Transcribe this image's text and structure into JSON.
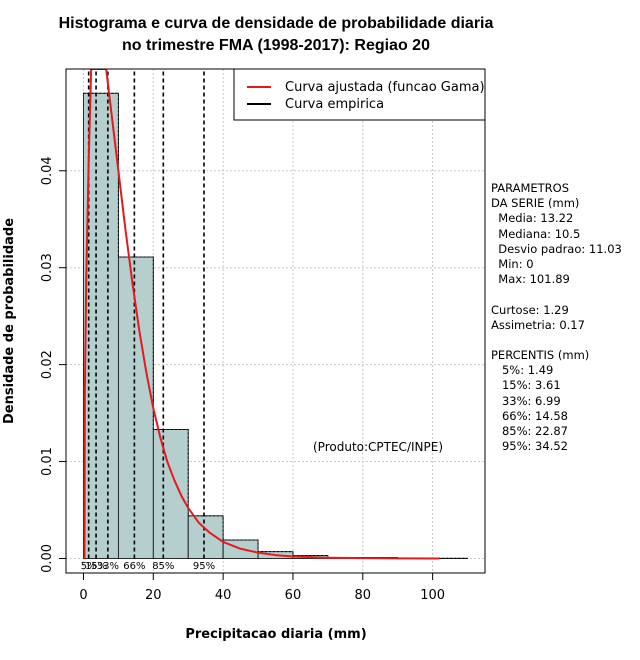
{
  "chart_data": {
    "type": "histogram",
    "title_lines": [
      "Histograma e curva de densidade de probabilidade diaria",
      "no trimestre FMA (1998-2017): Regiao 20"
    ],
    "xlabel": "Precipitacao diaria (mm)",
    "ylabel": "Densidade de probabilidade",
    "xlim": [
      -5,
      115
    ],
    "ylim": [
      -0.0015,
      0.0505
    ],
    "x_ticks": [
      0,
      20,
      40,
      60,
      80,
      100
    ],
    "y_ticks": [
      0.0,
      0.01,
      0.02,
      0.03,
      0.04
    ],
    "y_tick_labels": [
      "0.00",
      "0.01",
      "0.02",
      "0.03",
      "0.04"
    ],
    "bins": [
      {
        "start": 0,
        "end": 10,
        "density": 0.048
      },
      {
        "start": 10,
        "end": 20,
        "density": 0.0311
      },
      {
        "start": 20,
        "end": 30,
        "density": 0.0133
      },
      {
        "start": 30,
        "end": 40,
        "density": 0.0044
      },
      {
        "start": 40,
        "end": 50,
        "density": 0.0019
      },
      {
        "start": 50,
        "end": 60,
        "density": 0.0007
      },
      {
        "start": 60,
        "end": 70,
        "density": 0.0003
      },
      {
        "start": 70,
        "end": 80,
        "density": 0.0001
      },
      {
        "start": 80,
        "end": 90,
        "density": 0.0001
      },
      {
        "start": 90,
        "end": 100,
        "density": 3e-05
      },
      {
        "start": 100,
        "end": 110,
        "density": 2e-05
      }
    ],
    "fitted_curve": {
      "name": "Curva ajustada (funcao Gama)",
      "color": "#e41a1c",
      "points": [
        [
          0.3,
          0.0
        ],
        [
          0.4,
          0.017
        ],
        [
          0.8,
          0.029
        ],
        [
          1.5,
          0.041
        ],
        [
          2.2,
          0.0505
        ],
        [
          6.5,
          0.0505
        ],
        [
          8,
          0.046
        ],
        [
          10,
          0.04
        ],
        [
          12,
          0.034
        ],
        [
          14,
          0.0285
        ],
        [
          16,
          0.0235
        ],
        [
          18,
          0.0192
        ],
        [
          20,
          0.0155
        ],
        [
          22,
          0.0125
        ],
        [
          24,
          0.01
        ],
        [
          26,
          0.0081
        ],
        [
          28,
          0.0065
        ],
        [
          30,
          0.0052
        ],
        [
          33,
          0.0037
        ],
        [
          36,
          0.0027
        ],
        [
          40,
          0.0017
        ],
        [
          45,
          0.001
        ],
        [
          50,
          0.0006
        ],
        [
          55,
          0.00035
        ],
        [
          60,
          0.0002
        ],
        [
          70,
          8e-05
        ],
        [
          80,
          3e-05
        ],
        [
          90,
          1e-05
        ],
        [
          101.9,
          0.0
        ]
      ]
    },
    "empirical_curve": {
      "name": "Curva empirica",
      "color": "#000000",
      "points": [
        [
          0,
          0.048
        ],
        [
          10,
          0.048
        ],
        [
          10,
          0.0311
        ],
        [
          20,
          0.0311
        ],
        [
          20,
          0.0133
        ],
        [
          30,
          0.0133
        ],
        [
          30,
          0.0044
        ],
        [
          40,
          0.0044
        ],
        [
          40,
          0.0019
        ],
        [
          50,
          0.0019
        ],
        [
          50,
          0.0007
        ],
        [
          60,
          0.0007
        ],
        [
          60,
          0.0003
        ],
        [
          70,
          0.0003
        ],
        [
          70,
          0.0001
        ],
        [
          80,
          0.0001
        ],
        [
          80,
          0.0001
        ],
        [
          90,
          0.0001
        ],
        [
          90,
          3e-05
        ],
        [
          100,
          3e-05
        ],
        [
          100,
          2e-05
        ],
        [
          110,
          2e-05
        ]
      ]
    },
    "legend": {
      "position": "top-right",
      "entries": [
        {
          "label": "Curva ajustada (funcao Gama)",
          "color": "#e41a1c"
        },
        {
          "label": "Curva empirica",
          "color": "#000000"
        }
      ]
    },
    "percentile_lines": [
      {
        "label": "5%",
        "value": 1.49
      },
      {
        "label": "15%",
        "value": 3.61
      },
      {
        "label": "33%",
        "value": 6.99
      },
      {
        "label": "66%",
        "value": 14.58
      },
      {
        "label": "85%",
        "value": 22.87
      },
      {
        "label": "95%",
        "value": 34.52
      }
    ],
    "annotation": "(Produto:CPTEC/INPE)",
    "grid": true,
    "bar_color": "#b5cfcf"
  },
  "stats_panel": {
    "lines": [
      "PARAMETROS",
      "DA SERIE (mm)",
      "  Media: 13.22",
      "  Mediana: 10.5",
      "  Desvio padrao: 11.03",
      "  Min: 0",
      "  Max: 101.89",
      "",
      "Curtose: 1.29",
      "Assimetria: 0.17",
      "",
      "PERCENTIS (mm)",
      "   5%: 1.49",
      "   15%: 3.61",
      "   33%: 6.99",
      "   66%: 14.58",
      "   85%: 22.87",
      "   95%: 34.52"
    ]
  }
}
